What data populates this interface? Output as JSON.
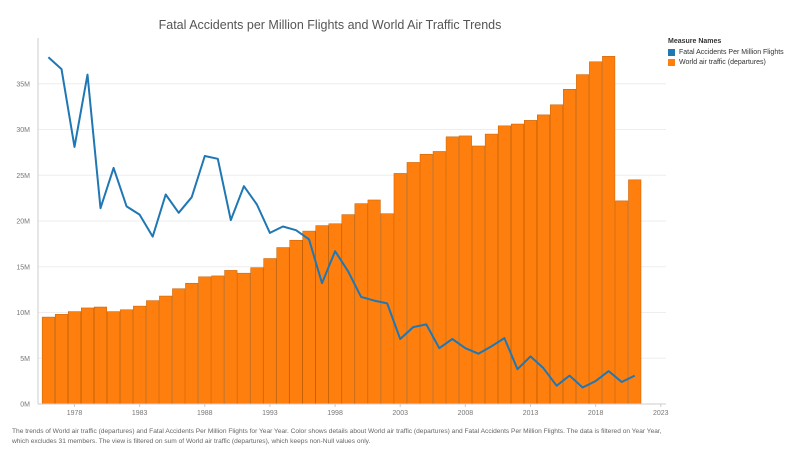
{
  "colors": {
    "bars": "#ff7f0e",
    "bar_stroke": "#c45e00",
    "line": "#1f77b4",
    "grid": "#eeeeee",
    "axis": "#cccccc"
  },
  "legend": {
    "title": "Measure Names",
    "items": [
      {
        "label": "Fatal Accidents  Per Million Flights",
        "color": "#1f77b4"
      },
      {
        "label": "World air traffic (departures)",
        "color": "#ff7f0e"
      }
    ]
  },
  "caption": {
    "line1": "The trends of World air traffic (departures) and Fatal Accidents  Per Million Flights for Year Year.  Color shows details about World air traffic (departures) and Fatal Accidents  Per Million Flights. The data is filtered on Year Year,",
    "line2": "which excludes 31 members. The view is filtered on sum of World air traffic (departures), which keeps non-Null values only."
  },
  "chart_data": {
    "type": "bar",
    "title": "Fatal Accidents per Million Flights and World Air Traffic Trends",
    "xlabel": "",
    "ylabel": "",
    "x": [
      1976,
      1977,
      1978,
      1979,
      1980,
      1981,
      1982,
      1983,
      1984,
      1985,
      1986,
      1987,
      1988,
      1989,
      1990,
      1991,
      1992,
      1993,
      1994,
      1995,
      1996,
      1997,
      1998,
      1999,
      2000,
      2001,
      2002,
      2003,
      2004,
      2005,
      2006,
      2007,
      2008,
      2009,
      2010,
      2011,
      2012,
      2013,
      2014,
      2015,
      2016,
      2017,
      2018,
      2019,
      2020,
      2021
    ],
    "xlim": [
      1975.2,
      2023.4
    ],
    "x_ticks": [
      1978,
      1983,
      1988,
      1993,
      1998,
      2003,
      2008,
      2013,
      2018,
      2023
    ],
    "ylim": [
      0,
      40000000
    ],
    "y_ticks": [
      {
        "value": 0,
        "label": "0M"
      },
      {
        "value": 5000000,
        "label": "5M"
      },
      {
        "value": 10000000,
        "label": "10M"
      },
      {
        "value": 15000000,
        "label": "15M"
      },
      {
        "value": 20000000,
        "label": "20M"
      },
      {
        "value": 25000000,
        "label": "25M"
      },
      {
        "value": 30000000,
        "label": "30M"
      },
      {
        "value": 35000000,
        "label": "35M"
      }
    ],
    "grid": true,
    "legend_position": "right",
    "series": [
      {
        "name": "World air traffic (departures)",
        "type": "bar",
        "values": [
          9500000,
          9800000,
          10100000,
          10500000,
          10600000,
          10100000,
          10300000,
          10700000,
          11300000,
          11800000,
          12600000,
          13200000,
          13900000,
          14000000,
          14600000,
          14300000,
          14900000,
          15900000,
          17100000,
          17900000,
          18900000,
          19500000,
          19700000,
          20700000,
          21900000,
          22300000,
          20800000,
          25200000,
          26400000,
          27300000,
          27600000,
          29200000,
          29300000,
          28200000,
          29500000,
          30400000,
          30600000,
          31000000,
          31600000,
          32700000,
          34400000,
          36000000,
          37400000,
          38000000,
          22200000,
          24500000
        ]
      },
      {
        "name": "Fatal Accidents  Per Million Flights",
        "type": "line",
        "values": [
          37900000,
          36600000,
          28100000,
          36000000,
          21400000,
          25800000,
          21600000,
          20700000,
          18300000,
          22900000,
          20900000,
          22600000,
          27100000,
          26800000,
          20100000,
          23800000,
          21800000,
          18700000,
          19400000,
          19000000,
          18000000,
          13200000,
          16700000,
          14500000,
          11700000,
          11300000,
          11000000,
          7100000,
          8400000,
          8700000,
          6100000,
          7100000,
          6100000,
          5500000,
          6300000,
          7200000,
          3800000,
          5200000,
          3900000,
          2000000,
          3100000,
          1800000,
          2500000,
          3600000,
          2400000,
          3100000
        ]
      }
    ]
  }
}
